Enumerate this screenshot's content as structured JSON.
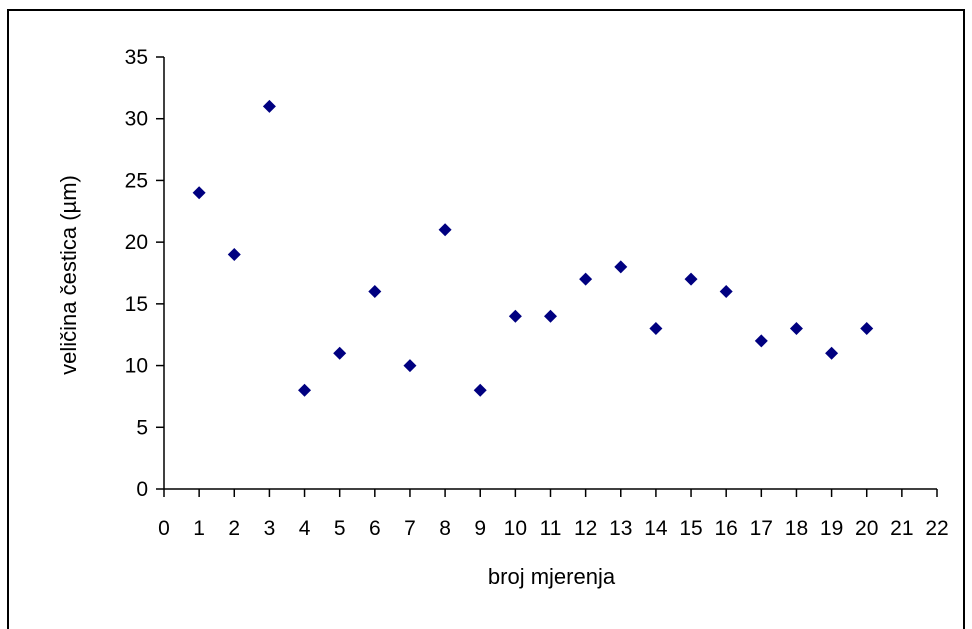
{
  "chart_data": {
    "type": "scatter",
    "title": "",
    "xlabel": "broj mjerenja",
    "ylabel": "veličina čestica (µm)",
    "xlim": [
      0,
      22
    ],
    "ylim": [
      0,
      35
    ],
    "x_ticks": [
      0,
      1,
      2,
      3,
      4,
      5,
      6,
      7,
      8,
      9,
      10,
      11,
      12,
      13,
      14,
      15,
      16,
      17,
      18,
      19,
      20,
      21,
      22
    ],
    "y_ticks": [
      0,
      5,
      10,
      15,
      20,
      25,
      30,
      35
    ],
    "grid": false,
    "legend": "none",
    "marker": "diamond",
    "marker_color": "#000080",
    "series": [
      {
        "x": [
          1,
          2,
          3,
          4,
          5,
          6,
          7,
          8,
          9,
          10,
          11,
          12,
          13,
          14,
          15,
          16,
          17,
          18,
          19,
          20
        ],
        "y": [
          24,
          19,
          31,
          8,
          11,
          16,
          10,
          21,
          8,
          14,
          14,
          17,
          18,
          13,
          17,
          16,
          12,
          13,
          11,
          13
        ]
      }
    ]
  }
}
